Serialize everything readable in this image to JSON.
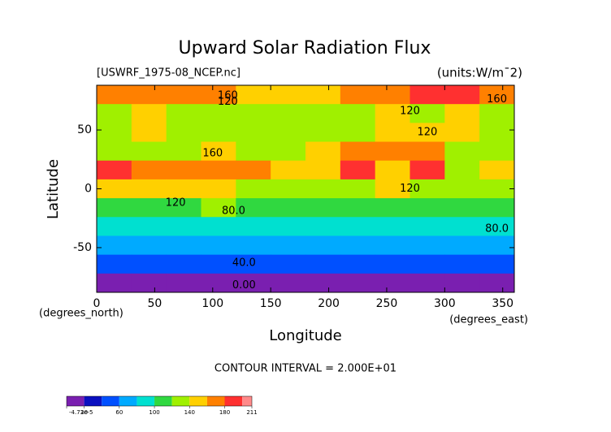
{
  "chart_data": {
    "type": "contour",
    "title": "Upward Solar Radiation Flux",
    "subtitle_left": "[USWRF_1975-08_NCEP.nc]",
    "subtitle_right": "(units:W/m¯2)",
    "xlabel": "Longitude",
    "ylabel": "Latitude",
    "xunit": "(degrees_east)",
    "yunit": "(degrees_north)",
    "footer": "CONTOUR INTERVAL = 2.000E+01",
    "xlim": [
      0,
      360
    ],
    "ylim": [
      -88,
      88
    ],
    "xticks": [
      0,
      50,
      100,
      150,
      200,
      250,
      300,
      350
    ],
    "yticks": [
      -50,
      0,
      50
    ],
    "lons": [
      15,
      45,
      75,
      105,
      135,
      165,
      195,
      225,
      255,
      285,
      315,
      345
    ],
    "lats": [
      80,
      64,
      48,
      32,
      16,
      0,
      -16,
      -32,
      -48,
      -64,
      -80
    ],
    "z": [
      [
        170,
        170,
        170,
        165,
        150,
        150,
        150,
        160,
        170,
        180,
        185,
        175
      ],
      [
        130,
        140,
        120,
        130,
        120,
        120,
        120,
        130,
        140,
        130,
        150,
        130
      ],
      [
        130,
        150,
        120,
        120,
        130,
        120,
        130,
        120,
        150,
        150,
        140,
        130
      ],
      [
        120,
        130,
        130,
        140,
        130,
        120,
        140,
        170,
        160,
        170,
        130,
        130
      ],
      [
        180,
        160,
        170,
        175,
        160,
        140,
        150,
        180,
        150,
        180,
        130,
        150
      ],
      [
        140,
        150,
        150,
        140,
        130,
        130,
        120,
        130,
        140,
        130,
        120,
        130
      ],
      [
        110,
        110,
        110,
        120,
        100,
        100,
        110,
        110,
        100,
        110,
        110,
        110
      ],
      [
        90,
        90,
        90,
        90,
        90,
        90,
        90,
        90,
        90,
        90,
        90,
        90
      ],
      [
        75,
        70,
        75,
        75,
        72,
        70,
        75,
        75,
        75,
        75,
        70,
        70
      ],
      [
        55,
        55,
        55,
        55,
        50,
        50,
        50,
        50,
        55,
        55,
        50,
        50
      ],
      [
        10,
        10,
        10,
        10,
        10,
        10,
        10,
        10,
        10,
        10,
        10,
        10
      ]
    ],
    "levels": [
      0,
      20,
      40,
      60,
      80,
      100,
      120,
      140,
      160,
      180,
      200
    ],
    "colors": [
      "#7a1fb0",
      "#0a10c0",
      "#0050ff",
      "#00aaff",
      "#00e0d0",
      "#30d840",
      "#a0f000",
      "#ffd000",
      "#ff8000",
      "#ff3030",
      "#ff8a8a"
    ],
    "contour_labels": [
      {
        "text": "160",
        "lon": 113,
        "lat": 79
      },
      {
        "text": "120",
        "lon": 113,
        "lat": 74
      },
      {
        "text": "160",
        "lon": 345,
        "lat": 76
      },
      {
        "text": "120",
        "lon": 270,
        "lat": 66
      },
      {
        "text": "120",
        "lon": 285,
        "lat": 48
      },
      {
        "text": "160",
        "lon": 100,
        "lat": 30
      },
      {
        "text": "120",
        "lon": 270,
        "lat": 0
      },
      {
        "text": "120",
        "lon": 68,
        "lat": -12
      },
      {
        "text": "80.0",
        "lon": 118,
        "lat": -19
      },
      {
        "text": "80.0",
        "lon": 345,
        "lat": -34
      },
      {
        "text": "40.0",
        "lon": 127,
        "lat": -63
      },
      {
        "text": "0.00",
        "lon": 127,
        "lat": -82
      }
    ],
    "colorbar_lim": [
      -4.73e-05,
      211
    ],
    "colorbar_ticks": [
      {
        "value": -4.73e-05,
        "label": "-4.73e-5"
      },
      20,
      60,
      100,
      140,
      180,
      211
    ]
  }
}
